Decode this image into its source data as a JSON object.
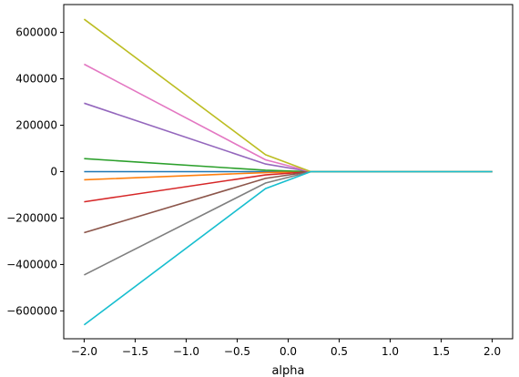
{
  "chart_data": {
    "type": "line",
    "title": "",
    "xlabel": "alpha",
    "ylabel": "",
    "xlim": [
      -2.2,
      2.2
    ],
    "ylim": [
      -720000,
      720000
    ],
    "grid": false,
    "xticks": [
      -2.0,
      -1.5,
      -1.0,
      -0.5,
      0.0,
      0.5,
      1.0,
      1.5,
      2.0
    ],
    "xtick_labels": [
      "−2.0",
      "−1.5",
      "−1.0",
      "−0.5",
      "0.0",
      "0.5",
      "1.0",
      "1.5",
      "2.0"
    ],
    "yticks": [
      600000,
      400000,
      200000,
      0,
      -200000,
      -400000,
      -600000
    ],
    "ytick_labels": [
      "600000",
      "400000",
      "200000",
      "0",
      "−200000",
      "−400000",
      "−600000"
    ],
    "x": [
      -2.0,
      -0.222,
      0.222,
      2.0
    ],
    "series": [
      {
        "color": "#1f77b4",
        "values": [
          0,
          0,
          0,
          0
        ]
      },
      {
        "color": "#ff7f0e",
        "values": [
          -35000,
          -4000,
          0,
          0
        ]
      },
      {
        "color": "#2ca02c",
        "values": [
          56000,
          6000,
          0,
          0
        ]
      },
      {
        "color": "#d62728",
        "values": [
          -130000,
          -14000,
          0,
          0
        ]
      },
      {
        "color": "#9467bd",
        "values": [
          295000,
          33000,
          0,
          0
        ]
      },
      {
        "color": "#8c564b",
        "values": [
          -263000,
          -29000,
          0,
          0
        ]
      },
      {
        "color": "#e377c2",
        "values": [
          463000,
          51000,
          0,
          0
        ]
      },
      {
        "color": "#7f7f7f",
        "values": [
          -445000,
          -49000,
          0,
          0
        ]
      },
      {
        "color": "#bcbd22",
        "values": [
          657000,
          73000,
          0,
          0
        ]
      },
      {
        "color": "#17becf",
        "values": [
          -660000,
          -73000,
          0,
          0
        ]
      }
    ]
  }
}
